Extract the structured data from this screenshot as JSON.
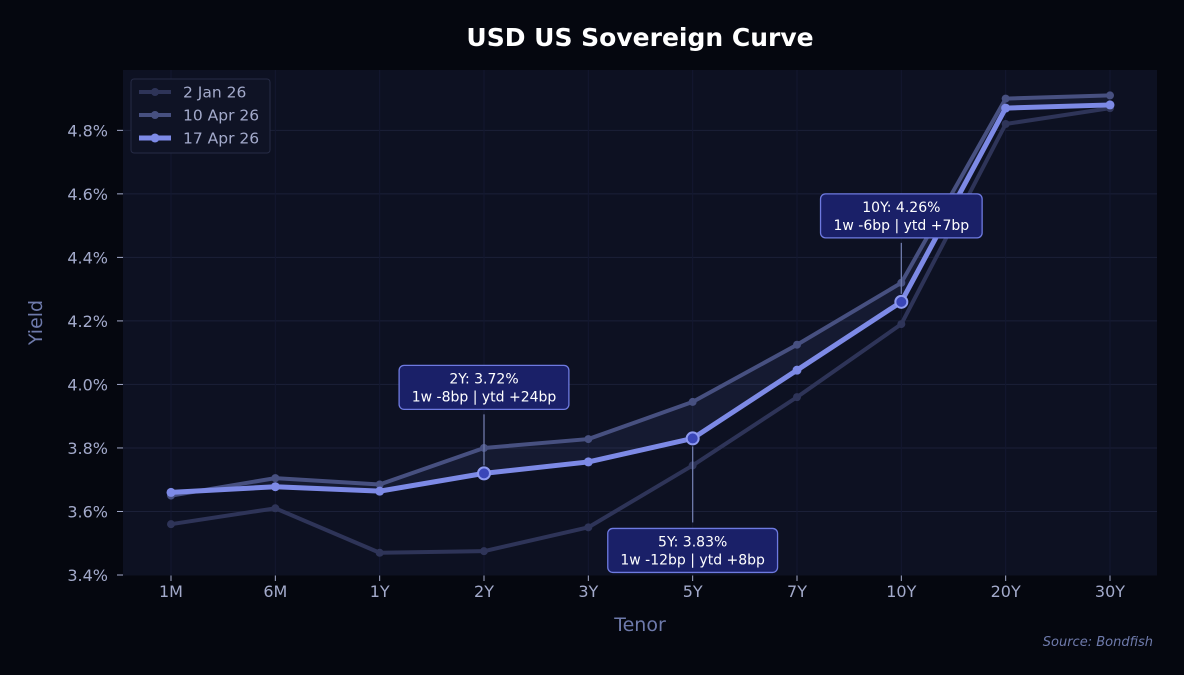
{
  "chart_data": {
    "type": "line",
    "title": "USD US Sovereign Curve",
    "xlabel": "Tenor",
    "ylabel": "Yield",
    "categories": [
      "1M",
      "6M",
      "1Y",
      "2Y",
      "3Y",
      "5Y",
      "7Y",
      "10Y",
      "20Y",
      "30Y"
    ],
    "ylim": [
      3.4,
      4.99
    ],
    "yticks": [
      3.4,
      3.6,
      3.8,
      4.0,
      4.2,
      4.4,
      4.6,
      4.8
    ],
    "ytick_labels": [
      "3.4%",
      "3.6%",
      "3.8%",
      "4.0%",
      "4.2%",
      "4.4%",
      "4.6%",
      "4.8%"
    ],
    "grid": true,
    "legend_position": "top-left",
    "series": [
      {
        "name": "2 Jan 26",
        "color": "#2e3458",
        "values": [
          3.56,
          3.61,
          3.47,
          3.475,
          3.55,
          3.745,
          3.96,
          4.19,
          4.82,
          4.87
        ]
      },
      {
        "name": "10 Apr 26",
        "color": "#475080",
        "values": [
          3.65,
          3.705,
          3.685,
          3.8,
          3.828,
          3.945,
          4.125,
          4.32,
          4.9,
          4.91
        ]
      },
      {
        "name": "17 Apr 26",
        "color": "#7d8ae6",
        "values": [
          3.66,
          3.678,
          3.664,
          3.72,
          3.756,
          3.83,
          4.045,
          4.26,
          4.87,
          4.88
        ]
      }
    ],
    "annotations": [
      {
        "category": "2Y",
        "line1": "2Y: 3.72%",
        "line2": "1w -8bp | ytd +24bp",
        "placement": "above"
      },
      {
        "category": "5Y",
        "line1": "5Y: 3.83%",
        "line2": "1w -12bp | ytd +8bp",
        "placement": "below"
      },
      {
        "category": "10Y",
        "line1": "10Y: 4.26%",
        "line2": "1w -6bp | ytd +7bp",
        "placement": "above"
      }
    ],
    "source": "Source: Bondfish"
  }
}
